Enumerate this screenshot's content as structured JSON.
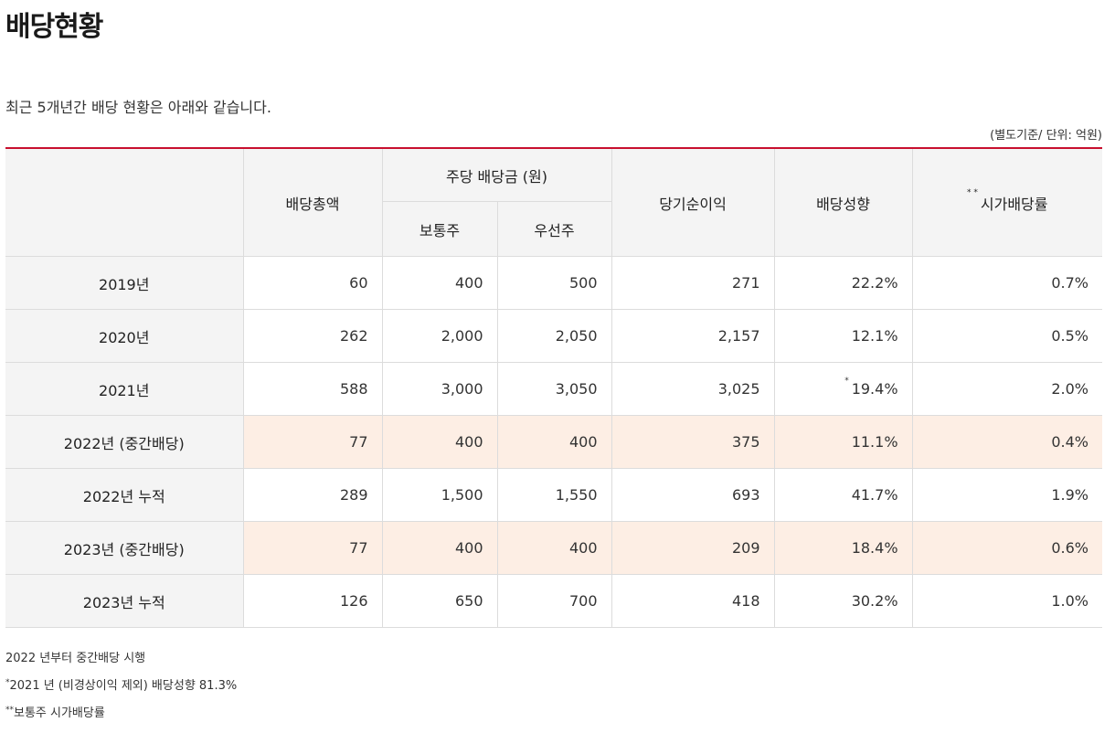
{
  "page": {
    "title": "배당현황",
    "intro": "최근 5개년간 배당 현황은 아래와 같습니다.",
    "unit": "(별도기준/ 단위: 억원)"
  },
  "table": {
    "headers": {
      "total": "배당총액",
      "per_share": "주당 배당금 (원)",
      "common": "보통주",
      "preferred": "우선주",
      "net_income": "당기순이익",
      "payout": "배당성향",
      "yield_mark": "* *",
      "yield": "시가배당률"
    },
    "rows": [
      {
        "year": "2019년",
        "total": "60",
        "common": "400",
        "preferred": "500",
        "net_income": "271",
        "payout": "22.2%",
        "yield": "0.7%",
        "highlight": false
      },
      {
        "year": "2020년",
        "total": "262",
        "common": "2,000",
        "preferred": "2,050",
        "net_income": "2,157",
        "payout": "12.1%",
        "yield": "0.5%",
        "highlight": false
      },
      {
        "year": "2021년",
        "total": "588",
        "common": "3,000",
        "preferred": "3,050",
        "net_income": "3,025",
        "payout_mark": "*",
        "payout": "19.4%",
        "yield": "2.0%",
        "highlight": false
      },
      {
        "year": "2022년 (중간배당)",
        "total": "77",
        "common": "400",
        "preferred": "400",
        "net_income": "375",
        "payout": "11.1%",
        "yield": "0.4%",
        "highlight": true
      },
      {
        "year": "2022년 누적",
        "total": "289",
        "common": "1,500",
        "preferred": "1,550",
        "net_income": "693",
        "payout": "41.7%",
        "yield": "1.9%",
        "highlight": false
      },
      {
        "year": "2023년 (중간배당)",
        "total": "77",
        "common": "400",
        "preferred": "400",
        "net_income": "209",
        "payout": "18.4%",
        "yield": "0.6%",
        "highlight": true
      },
      {
        "year": "2023년 누적",
        "total": "126",
        "common": "650",
        "preferred": "700",
        "net_income": "418",
        "payout": "30.2%",
        "yield": "1.0%",
        "highlight": false
      }
    ],
    "highlight_color": "#fdeee4"
  },
  "notes": [
    {
      "mark": "",
      "text": "2022 년부터 중간배당 시행"
    },
    {
      "mark": "*",
      "text": "2021 년 (비경상이익 제외) 배당성향 81.3%"
    },
    {
      "mark": "**",
      "text": "보통주 시가배당률"
    }
  ],
  "colors": {
    "accent": "#c8102e",
    "header_bg": "#f4f4f4"
  }
}
